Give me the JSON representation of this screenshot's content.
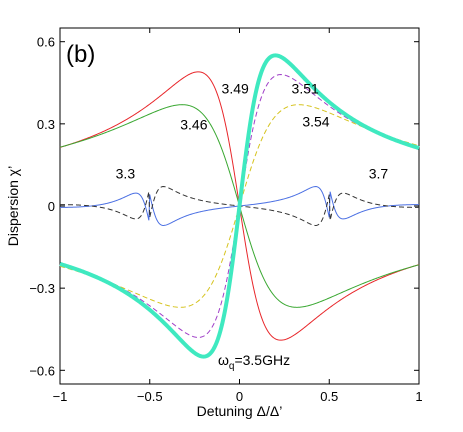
{
  "chart_data": {
    "type": "line",
    "panel_label": "(b)",
    "xlabel": "Detuning Δ/Δ’",
    "ylabel": "Dispersion χ’",
    "xlim": [
      -1,
      1
    ],
    "ylim": [
      -0.65,
      0.65
    ],
    "x_ticks": [
      -1,
      -0.5,
      0,
      0.5,
      1
    ],
    "x_tick_labels": [
      "−1",
      "−0.5",
      "0",
      "0.5",
      "1"
    ],
    "y_ticks": [
      -0.6,
      -0.3,
      0,
      0.3,
      0.6
    ],
    "y_tick_labels": [
      "−0.6",
      "−0.3",
      "0",
      "0.3",
      "0.6"
    ],
    "grid": false,
    "series": [
      {
        "name": "3.49",
        "color": "#e8262a",
        "dash": "solid",
        "width": 1,
        "center": 0.0,
        "sign": -1,
        "amp": 0.49,
        "gamma": 0.23
      },
      {
        "name": "3.46",
        "color": "#3aa832",
        "dash": "solid",
        "width": 1,
        "center": 0.0,
        "sign": -1,
        "amp": 0.37,
        "gamma": 0.32
      },
      {
        "name": "3.3",
        "color": "#4a6fe3",
        "dash": "solid",
        "width": 1,
        "center": 0.0,
        "sign": -1,
        "amp": 0.24,
        "gamma": 0.6,
        "note": "two-mode"
      },
      {
        "name": "3.51",
        "color": "#a040c8",
        "dash": "dashed",
        "width": 1,
        "center": 0.0,
        "sign": 1,
        "amp": 0.48,
        "gamma": 0.23
      },
      {
        "name": "3.54",
        "color": "#d6c420",
        "dash": "dashed",
        "width": 1,
        "center": 0.0,
        "sign": 1,
        "amp": 0.37,
        "gamma": 0.33
      },
      {
        "name": "3.7",
        "color": "#333333",
        "dash": "dashed",
        "width": 1,
        "center": 0.0,
        "sign": 1,
        "amp": 0.2,
        "gamma": 0.6,
        "note": "two-mode"
      },
      {
        "name": "ωq=3.5GHz",
        "color": "#3fe9c0",
        "dash": "solid",
        "width": 4,
        "center": 0.0,
        "sign": 1,
        "amp": 0.55,
        "gamma": 0.2
      }
    ],
    "annotations": [
      {
        "text": "3.49",
        "x": -0.1,
        "y": 0.41
      },
      {
        "text": "3.46",
        "x": -0.33,
        "y": 0.28
      },
      {
        "text": "3.3",
        "x": -0.69,
        "y": 0.1
      },
      {
        "text": "3.51",
        "x": 0.29,
        "y": 0.41
      },
      {
        "text": "3.54",
        "x": 0.35,
        "y": 0.29
      },
      {
        "text": "3.7",
        "x": 0.72,
        "y": 0.1
      },
      {
        "text_main": "ω",
        "text_sub": "q",
        "text_rest": "=3.5GHz",
        "x": -0.12,
        "y": -0.58
      }
    ]
  }
}
